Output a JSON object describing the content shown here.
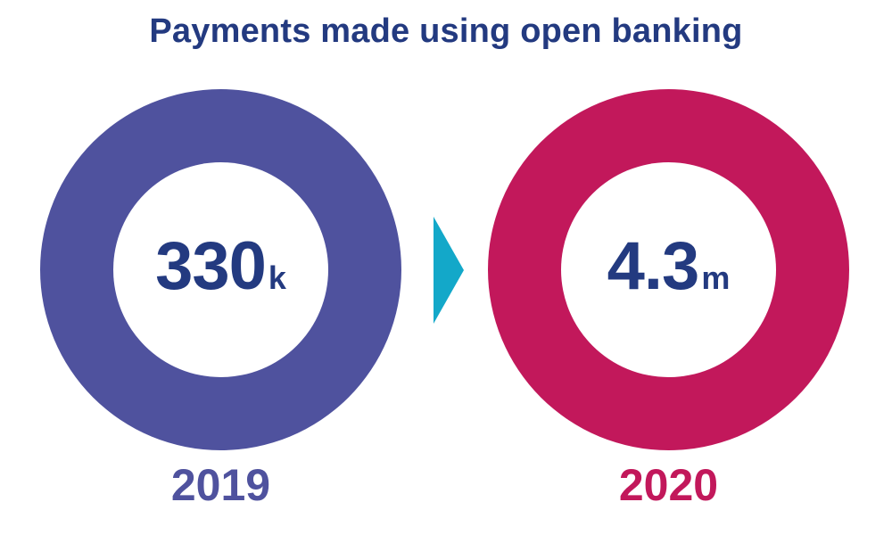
{
  "chart_data": {
    "type": "pie",
    "title": "Payments made using open banking",
    "categories": [
      "2019",
      "2020"
    ],
    "values": [
      330000,
      4300000
    ],
    "labels": [
      {
        "number": "330",
        "unit": "k"
      },
      {
        "number": "4.3",
        "unit": "m"
      }
    ],
    "colors": {
      "2019": "#4f529e",
      "2020": "#c2185b",
      "value_text": "#233a80",
      "title_text": "#233a80",
      "arrow": "#13a8c9"
    }
  }
}
